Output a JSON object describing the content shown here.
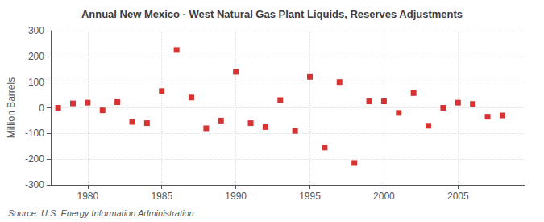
{
  "chart_data": {
    "type": "scatter",
    "title": "Annual New Mexico - West Natural Gas Plant Liquids, Reserves Adjustments",
    "ylabel": "Million Barrels",
    "annotation": "Source: U.S. Energy Information Administration",
    "x": [
      1978,
      1979,
      1980,
      1981,
      1982,
      1983,
      1984,
      1985,
      1986,
      1987,
      1988,
      1989,
      1990,
      1991,
      1992,
      1993,
      1994,
      1995,
      1996,
      1997,
      1998,
      1999,
      2000,
      2001,
      2002,
      2003,
      2004,
      2005,
      2006,
      2007,
      2008
    ],
    "values": [
      0,
      17,
      20,
      -10,
      22,
      -55,
      -60,
      65,
      225,
      40,
      -80,
      -50,
      140,
      -60,
      -75,
      30,
      -90,
      120,
      -155,
      100,
      -215,
      25,
      25,
      -20,
      57,
      -70,
      0,
      20,
      15,
      -35,
      -30
    ],
    "color": "#cc0000",
    "marker": "square",
    "xlim": [
      1977.5,
      2009.5
    ],
    "xticks": [
      1980,
      1985,
      1990,
      1995,
      2000,
      2005
    ],
    "ylim": [
      -300,
      300
    ],
    "yticks": [
      -300,
      -200,
      -100,
      0,
      100,
      200,
      300
    ],
    "grid": true
  }
}
